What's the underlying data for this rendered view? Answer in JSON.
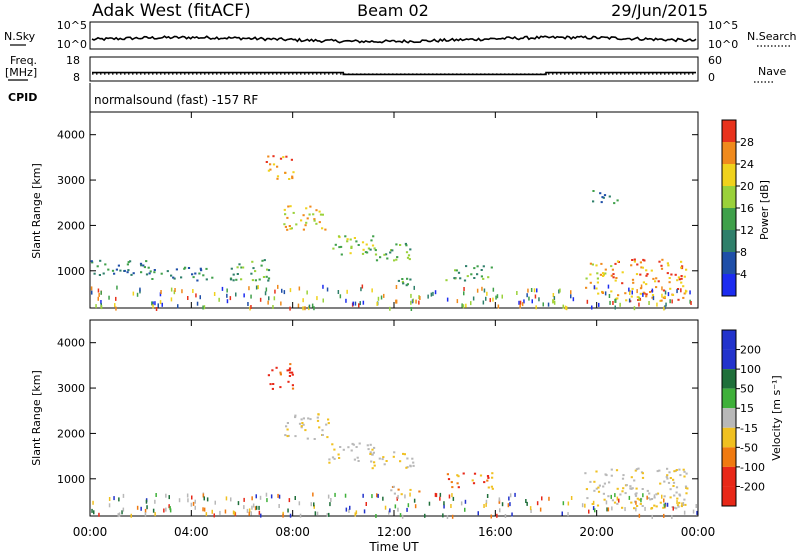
{
  "header": {
    "station": "Adak West (fitACF)",
    "beam": "Beam 02",
    "date": "29/Jun/2015"
  },
  "noise_panel": {
    "left_label": "N.Sky",
    "right_label": "N.Search",
    "tick_top": "10^5",
    "tick_bottom": "10^0"
  },
  "freq_panel": {
    "left_label": "Freq.",
    "left_unit": "[MHz]",
    "left_ticks": [
      "18",
      "8"
    ],
    "right_label": "Nave",
    "right_ticks": [
      "60",
      "0"
    ]
  },
  "cpid_panel": {
    "label": "CPID",
    "program": "normalsound (fast) -157 RF"
  },
  "power_panel": {
    "ylabel": "Slant Range [km]",
    "yticks": [
      "1000",
      "2000",
      "3000",
      "4000"
    ],
    "colorbar_label": "Power [dB]",
    "colorbar_ticks": [
      "4",
      "8",
      "12",
      "16",
      "20",
      "24",
      "28"
    ]
  },
  "velocity_panel": {
    "ylabel": "Slant Range [km]",
    "yticks": [
      "1000",
      "2000",
      "3000",
      "4000"
    ],
    "colorbar_label": "Velocity [m s⁻¹]",
    "colorbar_ticks": [
      "200",
      "100",
      "50",
      "15",
      "-15",
      "-50",
      "-100",
      "-200"
    ]
  },
  "x_axis": {
    "ticks": [
      "00:00",
      "04:00",
      "08:00",
      "12:00",
      "16:00",
      "20:00",
      "00:00"
    ],
    "label": "Time UT"
  },
  "colors": {
    "power_scale": [
      "#1c2cf0",
      "#1f4fa8",
      "#2f7f6a",
      "#3fa04a",
      "#9ad13a",
      "#f0d21c",
      "#f08a1c",
      "#e8321c"
    ],
    "velocity_scale": [
      "#2233cc",
      "#1f6f3a",
      "#3fb03a",
      "#b8b8b8",
      "#b8b8b8",
      "#f0c020",
      "#f07a10",
      "#e82818"
    ]
  },
  "chart_data": {
    "type": "heatmap",
    "x_range_hours": [
      0,
      24
    ],
    "y_range_km": [
      180,
      4500
    ],
    "frequency_mhz": [
      {
        "start_h": 0,
        "end_h": 10,
        "value": 11
      },
      {
        "start_h": 10,
        "end_h": 18,
        "value": 10
      },
      {
        "start_h": 18,
        "end_h": 24,
        "value": 11
      }
    ],
    "power_regions": [
      {
        "t0": 7.6,
        "t1": 9.4,
        "r0": 1900,
        "r1": 2450,
        "level": 5
      },
      {
        "t0": 9.4,
        "t1": 11.2,
        "r0": 1350,
        "r1": 1800,
        "level": 4
      },
      {
        "t0": 11.0,
        "t1": 12.8,
        "r0": 1250,
        "r1": 1650,
        "level": 3
      },
      {
        "t0": 0.0,
        "t1": 2.2,
        "r0": 850,
        "r1": 1250,
        "level": 2
      },
      {
        "t0": 2.2,
        "t1": 5.0,
        "r0": 800,
        "r1": 1100,
        "level": 2
      },
      {
        "t0": 5.5,
        "t1": 7.2,
        "r0": 800,
        "r1": 1300,
        "level": 3
      },
      {
        "t0": 11.8,
        "t1": 13.0,
        "r0": 650,
        "r1": 850,
        "level": 3
      },
      {
        "t0": 14.0,
        "t1": 15.9,
        "r0": 800,
        "r1": 1150,
        "level": 3
      },
      {
        "t0": 19.5,
        "t1": 20.6,
        "r0": 500,
        "r1": 1200,
        "level": 5
      },
      {
        "t0": 20.6,
        "t1": 23.6,
        "r0": 350,
        "r1": 1300,
        "level": 6
      },
      {
        "t0": 19.8,
        "t1": 20.8,
        "r0": 2500,
        "r1": 2800,
        "level": 2
      },
      {
        "t0": 6.9,
        "t1": 8.0,
        "r0": 3000,
        "r1": 3550,
        "level": 6
      }
    ],
    "velocity_regions": [
      {
        "t0": 7.6,
        "t1": 9.4,
        "r0": 1900,
        "r1": 2450,
        "level": 4
      },
      {
        "t0": 9.4,
        "t1": 11.2,
        "r0": 1350,
        "r1": 1800,
        "level": 4
      },
      {
        "t0": 11.0,
        "t1": 12.8,
        "r0": 1250,
        "r1": 1650,
        "level": 4
      },
      {
        "t0": 11.8,
        "t1": 13.0,
        "r0": 650,
        "r1": 850,
        "level": 5
      },
      {
        "t0": 14.0,
        "t1": 15.9,
        "r0": 800,
        "r1": 1150,
        "level": 6
      },
      {
        "t0": 19.5,
        "t1": 23.6,
        "r0": 350,
        "r1": 1250,
        "level": 4
      },
      {
        "t0": 6.9,
        "t1": 8.0,
        "r0": 3000,
        "r1": 3550,
        "level": 7
      }
    ]
  }
}
